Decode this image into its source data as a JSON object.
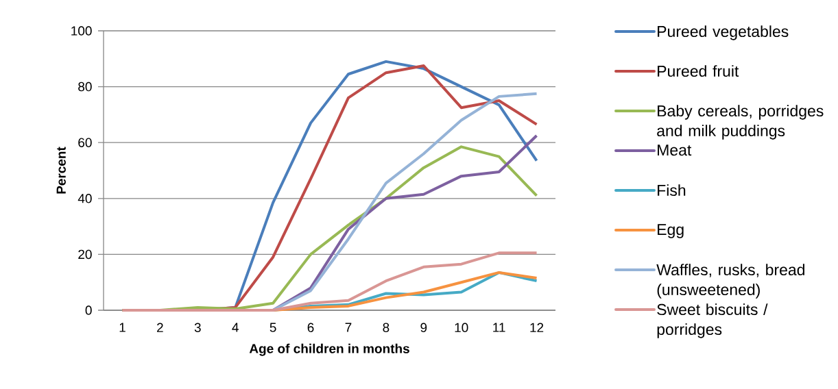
{
  "chart_data": {
    "type": "line",
    "xlabel": "Age of children in months",
    "ylabel": "Percent",
    "categories": [
      "1",
      "2",
      "3",
      "4",
      "5",
      "6",
      "7",
      "8",
      "9",
      "10",
      "11",
      "12"
    ],
    "ylim": [
      0,
      100
    ],
    "yticks": [
      0,
      20,
      40,
      60,
      80,
      100
    ],
    "grid": "y",
    "legend": "right",
    "marker": "none",
    "line_style": "solid",
    "series": [
      {
        "name": "Pureed vegetables",
        "color": "#4a7ebb",
        "values": [
          null,
          null,
          0,
          1,
          38.5,
          67,
          84.5,
          89,
          86.5,
          80,
          73.5,
          53.5
        ]
      },
      {
        "name": "Pureed fruit",
        "color": "#be4b48",
        "values": [
          0,
          0,
          0,
          1,
          19,
          47,
          76,
          85,
          87.5,
          72.5,
          75,
          66.5
        ]
      },
      {
        "name": "Baby cereals, porridges and milk puddings",
        "color": "#98b954",
        "values": [
          0,
          0,
          1,
          0.5,
          2.5,
          20,
          30.5,
          40,
          51,
          58.5,
          55,
          41
        ]
      },
      {
        "name": "Meat",
        "color": "#7d60a0",
        "values": [
          null,
          null,
          null,
          0,
          0,
          8,
          29,
          40,
          41.5,
          48,
          49.5,
          62.5
        ]
      },
      {
        "name": "Fish",
        "color": "#46aac5",
        "values": [
          null,
          null,
          null,
          0,
          0,
          1.5,
          2,
          6,
          5.5,
          6.5,
          13.5,
          10.5
        ]
      },
      {
        "name": "Egg",
        "color": "#f69240",
        "values": [
          null,
          null,
          null,
          0,
          0,
          1,
          1.5,
          4.5,
          6.5,
          10,
          13.5,
          11.5
        ]
      },
      {
        "name": "Waffles, rusks, bread (unsweetened)",
        "color": "#95b3d7",
        "values": [
          null,
          null,
          null,
          0,
          0,
          7,
          25.5,
          45.5,
          56,
          68,
          76.5,
          77.5
        ]
      },
      {
        "name": "Sweet biscuits / porridges",
        "color": "#d99694",
        "values": [
          0,
          0,
          0,
          0,
          0,
          2.5,
          3.5,
          10.5,
          15.5,
          16.5,
          20.5,
          20.5
        ]
      }
    ]
  }
}
